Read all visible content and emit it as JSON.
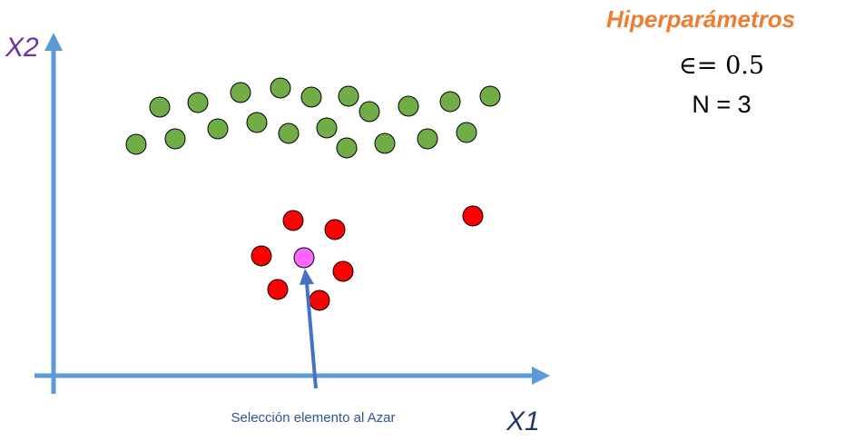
{
  "axes": {
    "x_label": "X1",
    "y_label": "X2"
  },
  "hyperparameters": {
    "title": "Hiperparámetros",
    "epsilon": "∈= 0.5",
    "n": "N = 3"
  },
  "annotation": {
    "caption": "Selección elemento al Azar"
  },
  "colors": {
    "axis": "#5b9bd5",
    "arrow": "#4472c4",
    "cluster_green": "#70ad47",
    "cluster_red": "#ff0000",
    "selected": "#ff66ff",
    "title_orange": "#ed7d31",
    "x2_purple": "#7030a0",
    "x1_navy": "#1f3864"
  }
}
